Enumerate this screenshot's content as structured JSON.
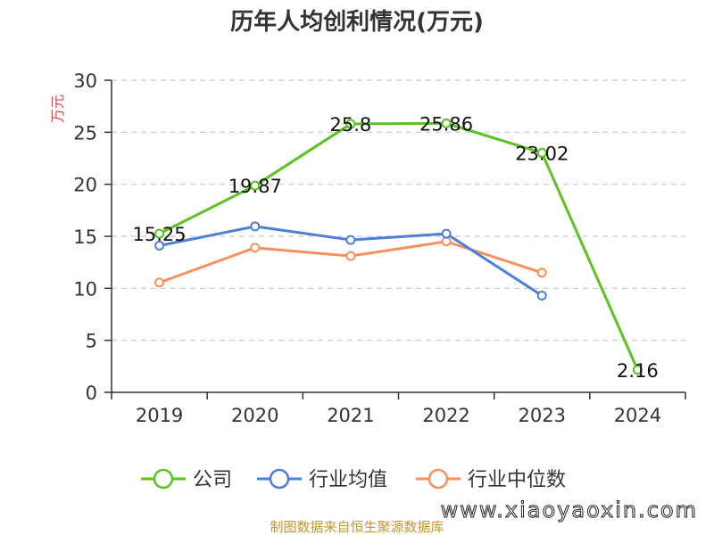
{
  "chart_data": {
    "type": "line",
    "title": "历年人均创利情况(万元)",
    "ylabel": "万元",
    "categories": [
      "2019",
      "2020",
      "2021",
      "2022",
      "2023",
      "2024"
    ],
    "ylim": [
      0,
      30
    ],
    "yticks": [
      0,
      5,
      10,
      15,
      20,
      25,
      30
    ],
    "grid": true,
    "legend_position": "bottom",
    "series": [
      {
        "name": "公司",
        "color": "#58c322",
        "values": [
          15.25,
          19.87,
          25.8,
          25.86,
          23.02,
          2.16
        ],
        "labels": [
          "15.25",
          "19.87",
          "25.8",
          "25.86",
          "23.02",
          "2.16"
        ]
      },
      {
        "name": "行业均值",
        "color": "#4e7fd8",
        "values": [
          14.1,
          15.95,
          14.65,
          15.25,
          9.3,
          null
        ]
      },
      {
        "name": "行业中位数",
        "color": "#f5915e",
        "values": [
          10.55,
          13.9,
          13.1,
          14.5,
          11.5,
          null
        ]
      }
    ]
  },
  "source": "制图数据来自恒生聚源数据库",
  "watermark": "www.xiaoyaoxin.com"
}
